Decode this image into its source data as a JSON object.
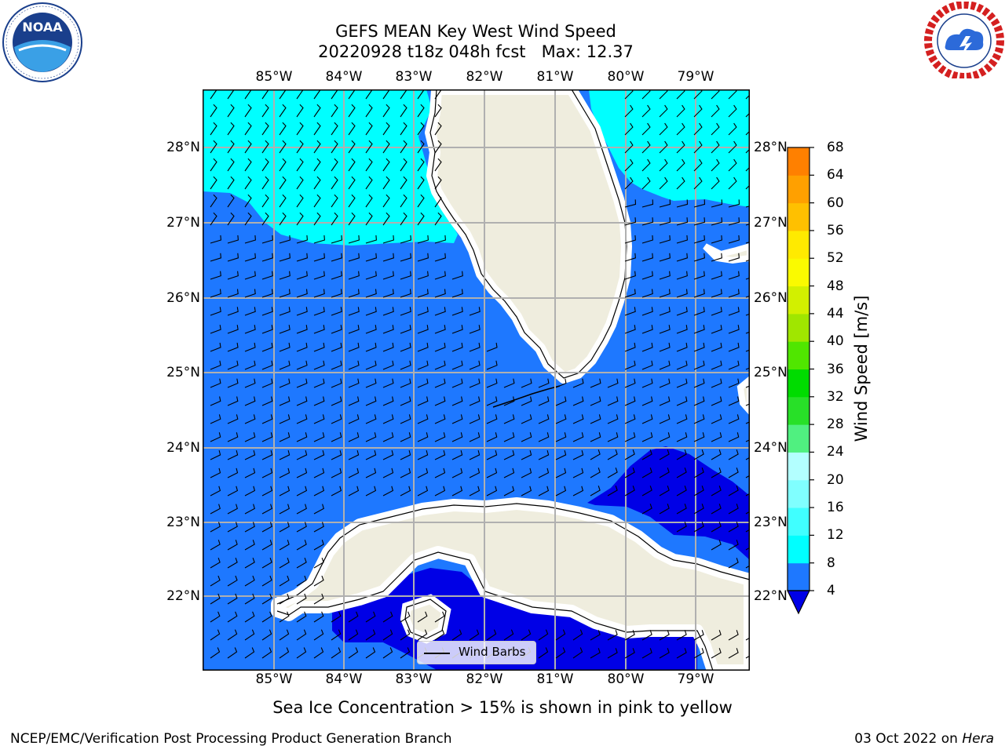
{
  "title": {
    "line1": "GEFS MEAN Key West Wind Speed",
    "line2": "20220928 t18z 048h fcst   Max: 12.37"
  },
  "logos": {
    "noaa_text": "NOAA",
    "noaa_icon": "noaa-logo",
    "nws_icon": "nws-logo"
  },
  "map": {
    "projection": "PlateCarree",
    "extent": {
      "lon": [
        -86.0,
        -78.3
      ],
      "lat": [
        21.0,
        28.75
      ]
    },
    "lon_labels": [
      "85°W",
      "84°W",
      "83°W",
      "82°W",
      "81°W",
      "80°W",
      "79°W"
    ],
    "lat_labels": [
      "28°N",
      "27°N",
      "26°N",
      "25°N",
      "24°N",
      "23°N",
      "22°N"
    ],
    "ocean_fill_color": "#1e78ff",
    "land_color": "#efedde",
    "gridlines": true
  },
  "colorbar": {
    "title": "Wind Speed [m/s]",
    "ticks": [
      "68",
      "64",
      "60",
      "56",
      "52",
      "48",
      "44",
      "40",
      "36",
      "32",
      "28",
      "24",
      "20",
      "16",
      "12",
      "8",
      "4"
    ],
    "extend": "min",
    "colors": [
      "#0000e6",
      "#1e78ff",
      "#00ffff",
      "#40ffff",
      "#80ffff",
      "#b3ffff",
      "#50f080",
      "#28e028",
      "#00dc00",
      "#50e600",
      "#a0e600",
      "#d2f000",
      "#fafa00",
      "#ffea00",
      "#ffc000",
      "#ffa000",
      "#ff8000",
      "#ff5000",
      "#ff2800",
      "#ff0000"
    ]
  },
  "legend": {
    "label": "Wind Barbs"
  },
  "subtitle": "Sea Ice Concentration > 15% is shown in pink to yellow",
  "footer": {
    "left": "NCEP/EMC/Verification Post Processing Product Generation Branch",
    "right_date": "03 Oct 2022 on",
    "right_host": "Hera"
  }
}
